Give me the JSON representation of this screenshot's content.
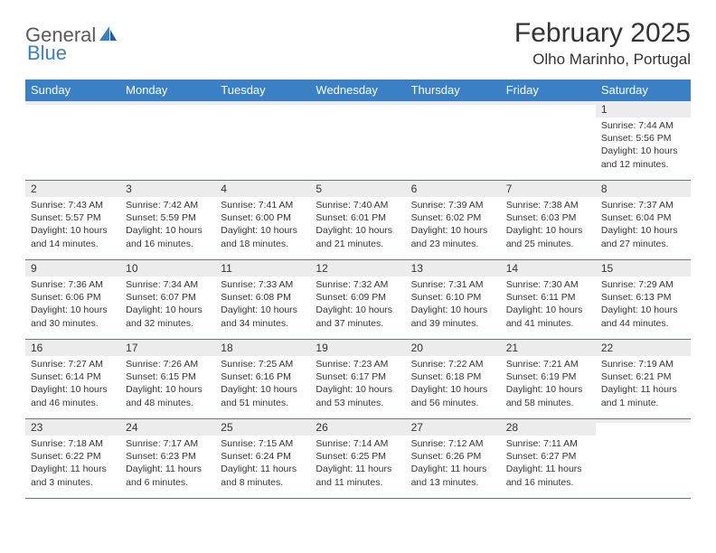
{
  "logo": {
    "part1": "General",
    "part2": "Blue"
  },
  "header": {
    "month": "February 2025",
    "location": "Olho Marinho, Portugal"
  },
  "colors": {
    "brand_blue": "#3b7fc4",
    "text": "#333333",
    "daynum_bg": "#ececec",
    "bg": "#ffffff"
  },
  "weekdays": [
    "Sunday",
    "Monday",
    "Tuesday",
    "Wednesday",
    "Thursday",
    "Friday",
    "Saturday"
  ],
  "weeks": [
    [
      {
        "n": "",
        "sr": "",
        "ss": "",
        "dl": ""
      },
      {
        "n": "",
        "sr": "",
        "ss": "",
        "dl": ""
      },
      {
        "n": "",
        "sr": "",
        "ss": "",
        "dl": ""
      },
      {
        "n": "",
        "sr": "",
        "ss": "",
        "dl": ""
      },
      {
        "n": "",
        "sr": "",
        "ss": "",
        "dl": ""
      },
      {
        "n": "",
        "sr": "",
        "ss": "",
        "dl": ""
      },
      {
        "n": "1",
        "sr": "Sunrise: 7:44 AM",
        "ss": "Sunset: 5:56 PM",
        "dl": "Daylight: 10 hours and 12 minutes."
      }
    ],
    [
      {
        "n": "2",
        "sr": "Sunrise: 7:43 AM",
        "ss": "Sunset: 5:57 PM",
        "dl": "Daylight: 10 hours and 14 minutes."
      },
      {
        "n": "3",
        "sr": "Sunrise: 7:42 AM",
        "ss": "Sunset: 5:59 PM",
        "dl": "Daylight: 10 hours and 16 minutes."
      },
      {
        "n": "4",
        "sr": "Sunrise: 7:41 AM",
        "ss": "Sunset: 6:00 PM",
        "dl": "Daylight: 10 hours and 18 minutes."
      },
      {
        "n": "5",
        "sr": "Sunrise: 7:40 AM",
        "ss": "Sunset: 6:01 PM",
        "dl": "Daylight: 10 hours and 21 minutes."
      },
      {
        "n": "6",
        "sr": "Sunrise: 7:39 AM",
        "ss": "Sunset: 6:02 PM",
        "dl": "Daylight: 10 hours and 23 minutes."
      },
      {
        "n": "7",
        "sr": "Sunrise: 7:38 AM",
        "ss": "Sunset: 6:03 PM",
        "dl": "Daylight: 10 hours and 25 minutes."
      },
      {
        "n": "8",
        "sr": "Sunrise: 7:37 AM",
        "ss": "Sunset: 6:04 PM",
        "dl": "Daylight: 10 hours and 27 minutes."
      }
    ],
    [
      {
        "n": "9",
        "sr": "Sunrise: 7:36 AM",
        "ss": "Sunset: 6:06 PM",
        "dl": "Daylight: 10 hours and 30 minutes."
      },
      {
        "n": "10",
        "sr": "Sunrise: 7:34 AM",
        "ss": "Sunset: 6:07 PM",
        "dl": "Daylight: 10 hours and 32 minutes."
      },
      {
        "n": "11",
        "sr": "Sunrise: 7:33 AM",
        "ss": "Sunset: 6:08 PM",
        "dl": "Daylight: 10 hours and 34 minutes."
      },
      {
        "n": "12",
        "sr": "Sunrise: 7:32 AM",
        "ss": "Sunset: 6:09 PM",
        "dl": "Daylight: 10 hours and 37 minutes."
      },
      {
        "n": "13",
        "sr": "Sunrise: 7:31 AM",
        "ss": "Sunset: 6:10 PM",
        "dl": "Daylight: 10 hours and 39 minutes."
      },
      {
        "n": "14",
        "sr": "Sunrise: 7:30 AM",
        "ss": "Sunset: 6:11 PM",
        "dl": "Daylight: 10 hours and 41 minutes."
      },
      {
        "n": "15",
        "sr": "Sunrise: 7:29 AM",
        "ss": "Sunset: 6:13 PM",
        "dl": "Daylight: 10 hours and 44 minutes."
      }
    ],
    [
      {
        "n": "16",
        "sr": "Sunrise: 7:27 AM",
        "ss": "Sunset: 6:14 PM",
        "dl": "Daylight: 10 hours and 46 minutes."
      },
      {
        "n": "17",
        "sr": "Sunrise: 7:26 AM",
        "ss": "Sunset: 6:15 PM",
        "dl": "Daylight: 10 hours and 48 minutes."
      },
      {
        "n": "18",
        "sr": "Sunrise: 7:25 AM",
        "ss": "Sunset: 6:16 PM",
        "dl": "Daylight: 10 hours and 51 minutes."
      },
      {
        "n": "19",
        "sr": "Sunrise: 7:23 AM",
        "ss": "Sunset: 6:17 PM",
        "dl": "Daylight: 10 hours and 53 minutes."
      },
      {
        "n": "20",
        "sr": "Sunrise: 7:22 AM",
        "ss": "Sunset: 6:18 PM",
        "dl": "Daylight: 10 hours and 56 minutes."
      },
      {
        "n": "21",
        "sr": "Sunrise: 7:21 AM",
        "ss": "Sunset: 6:19 PM",
        "dl": "Daylight: 10 hours and 58 minutes."
      },
      {
        "n": "22",
        "sr": "Sunrise: 7:19 AM",
        "ss": "Sunset: 6:21 PM",
        "dl": "Daylight: 11 hours and 1 minute."
      }
    ],
    [
      {
        "n": "23",
        "sr": "Sunrise: 7:18 AM",
        "ss": "Sunset: 6:22 PM",
        "dl": "Daylight: 11 hours and 3 minutes."
      },
      {
        "n": "24",
        "sr": "Sunrise: 7:17 AM",
        "ss": "Sunset: 6:23 PM",
        "dl": "Daylight: 11 hours and 6 minutes."
      },
      {
        "n": "25",
        "sr": "Sunrise: 7:15 AM",
        "ss": "Sunset: 6:24 PM",
        "dl": "Daylight: 11 hours and 8 minutes."
      },
      {
        "n": "26",
        "sr": "Sunrise: 7:14 AM",
        "ss": "Sunset: 6:25 PM",
        "dl": "Daylight: 11 hours and 11 minutes."
      },
      {
        "n": "27",
        "sr": "Sunrise: 7:12 AM",
        "ss": "Sunset: 6:26 PM",
        "dl": "Daylight: 11 hours and 13 minutes."
      },
      {
        "n": "28",
        "sr": "Sunrise: 7:11 AM",
        "ss": "Sunset: 6:27 PM",
        "dl": "Daylight: 11 hours and 16 minutes."
      },
      {
        "n": "",
        "sr": "",
        "ss": "",
        "dl": ""
      }
    ]
  ]
}
